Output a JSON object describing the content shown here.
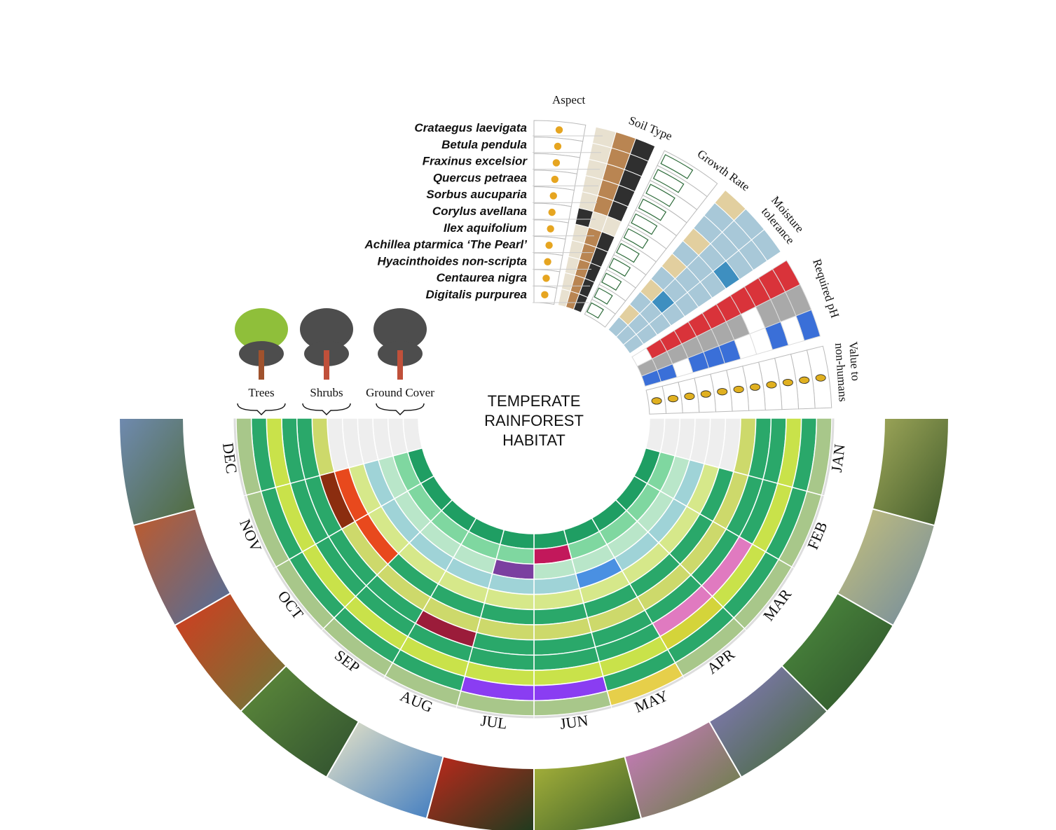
{
  "title_lines": [
    "TEMPERATE",
    "RAINFOREST",
    "HABITAT"
  ],
  "column_headers": {
    "aspect": "Aspect",
    "soil_type": "Soil Type",
    "growth_rate": "Growth Rate",
    "moisture": [
      "Moisture",
      "tolerance"
    ],
    "ph": "Required pH",
    "value": [
      "Value to",
      "non-humans"
    ]
  },
  "species": [
    "Crataegus laevigata",
    "Betula pendula",
    "Fraxinus excelsior",
    "Quercus petraea",
    "Sorbus aucuparia",
    "Corylus avellana",
    "Ilex aquifolium",
    "Achillea ptarmica ‘The Pearl’",
    "Hyacinthoides non-scripta",
    "Centaurea nigra",
    "Digitalis purpurea"
  ],
  "layers": [
    {
      "label": "Trees",
      "highlight": "#8fbf3a"
    },
    {
      "label": "Shrubs",
      "highlight": "#4d4d4d"
    },
    {
      "label": "Ground Cover",
      "highlight": "#4d4d4d"
    }
  ],
  "months": [
    "JAN",
    "FEB",
    "MAR",
    "APR",
    "MAY",
    "JUN",
    "JUL",
    "AUG",
    "SEP",
    "OCT",
    "NOV",
    "DEC"
  ],
  "ring_colors": [
    "#1f9e63",
    "#7fd7a0",
    "#b9e6c9",
    "#9fd3d7",
    "#d6e88a",
    "#2aa86a",
    "#cdd96b",
    "#2aa86a",
    "#2aa86a",
    "#c9e24a",
    "#2aa86a",
    "#a8c78a"
  ],
  "seasonal_accents": [
    {
      "ring": 0,
      "months": [
        "JUL",
        "JUN"
      ],
      "color": "#1f9e63"
    },
    {
      "ring": 1,
      "months": [
        "JUN"
      ],
      "color": "#c2185b"
    },
    {
      "ring": 2,
      "months": [
        "JUL"
      ],
      "color": "#7b3fa0"
    },
    {
      "ring": 3,
      "months": [
        "MAY"
      ],
      "color": "#4a90e2"
    },
    {
      "ring": 5,
      "months": [
        "NOV",
        "OCT"
      ],
      "color": "#e8491d"
    },
    {
      "ring": 6,
      "months": [
        "NOV"
      ],
      "color": "#8b2d0f"
    },
    {
      "ring": 7,
      "months": [
        "AUG"
      ],
      "color": "#9b1c3a"
    },
    {
      "ring": 8,
      "months": [
        "MAR",
        "APR"
      ],
      "color": "#e07ac0"
    },
    {
      "ring": 9,
      "months": [
        "APR"
      ],
      "color": "#d4d43a"
    },
    {
      "ring": 10,
      "months": [
        "JUL",
        "JUN"
      ],
      "color": "#8a3df2"
    },
    {
      "ring": 11,
      "months": [
        "MAY"
      ],
      "color": "#e6cf4a"
    }
  ],
  "photos": [
    {
      "name": "bare-tree-photo",
      "colors": [
        "#6f8ab0",
        "#4f6b3a"
      ]
    },
    {
      "name": "orange-tree-photo",
      "colors": [
        "#c15a2a",
        "#4c6fa0"
      ]
    },
    {
      "name": "red-berries-photo",
      "colors": [
        "#d63a1e",
        "#6a7a3a"
      ]
    },
    {
      "name": "green-tree-photo",
      "colors": [
        "#5f8d3b",
        "#2f4f2f"
      ]
    },
    {
      "name": "white-flowers-photo",
      "colors": [
        "#e9e5c8",
        "#3d7ac0"
      ]
    },
    {
      "name": "holly-photo",
      "colors": [
        "#c0281c",
        "#1d3b1e"
      ]
    },
    {
      "name": "yellow-flowers-photo",
      "colors": [
        "#a9b33a",
        "#3a5f2a"
      ]
    },
    {
      "name": "foxglove-photo",
      "colors": [
        "#d27ac8",
        "#5f7f3a"
      ]
    },
    {
      "name": "bluebell-photo",
      "colors": [
        "#8a7ac8",
        "#3f6a2a"
      ]
    },
    {
      "name": "leaves-photo",
      "colors": [
        "#4f8f3f",
        "#2c4f2a"
      ]
    },
    {
      "name": "catkins-photo",
      "colors": [
        "#c9c27a",
        "#6f8aa0"
      ]
    },
    {
      "name": "shrub-photo",
      "colors": [
        "#a0a85a",
        "#3f5a2a"
      ]
    }
  ],
  "colors": {
    "soil_sand": "#e8e1d0",
    "soil_clay": "#b98552",
    "soil_dark": "#2f2f2f",
    "moisture": "#a8c8d8",
    "moisture_dry": "#e2cf9f",
    "moisture_wet": "#3e8fc0",
    "ph_acid": "#d9333a",
    "ph_neutral": "#a9a9a9",
    "ph_alkaline": "#3a6fd8",
    "growth": "#2d6b3a",
    "sun": "#e6a520"
  }
}
